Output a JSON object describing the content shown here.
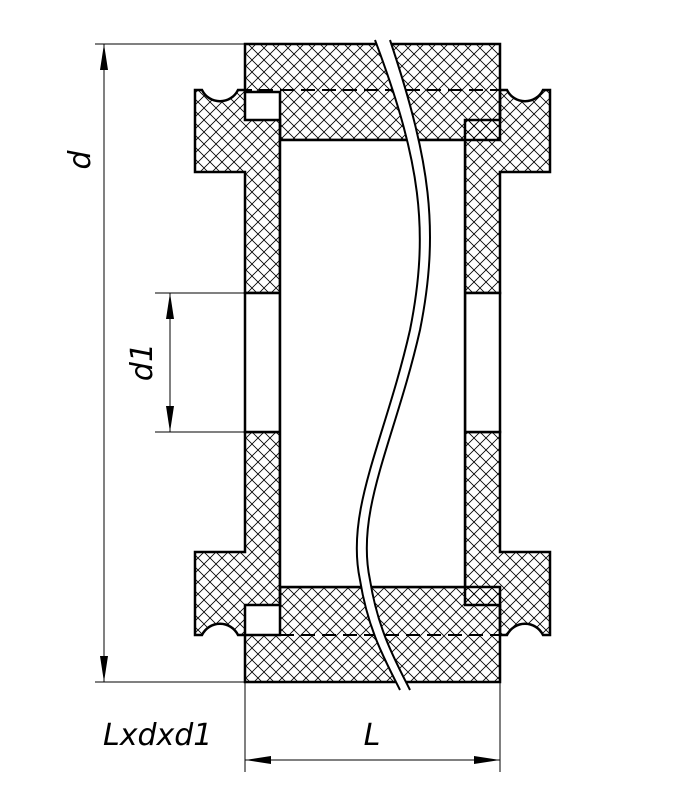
{
  "labels": {
    "dim_d": "d",
    "dim_d1": "d1",
    "dim_L": "L",
    "formula": "Lxdxd1"
  },
  "colors": {
    "line": "#000000",
    "hatch": "#000000",
    "background": "#ffffff"
  }
}
